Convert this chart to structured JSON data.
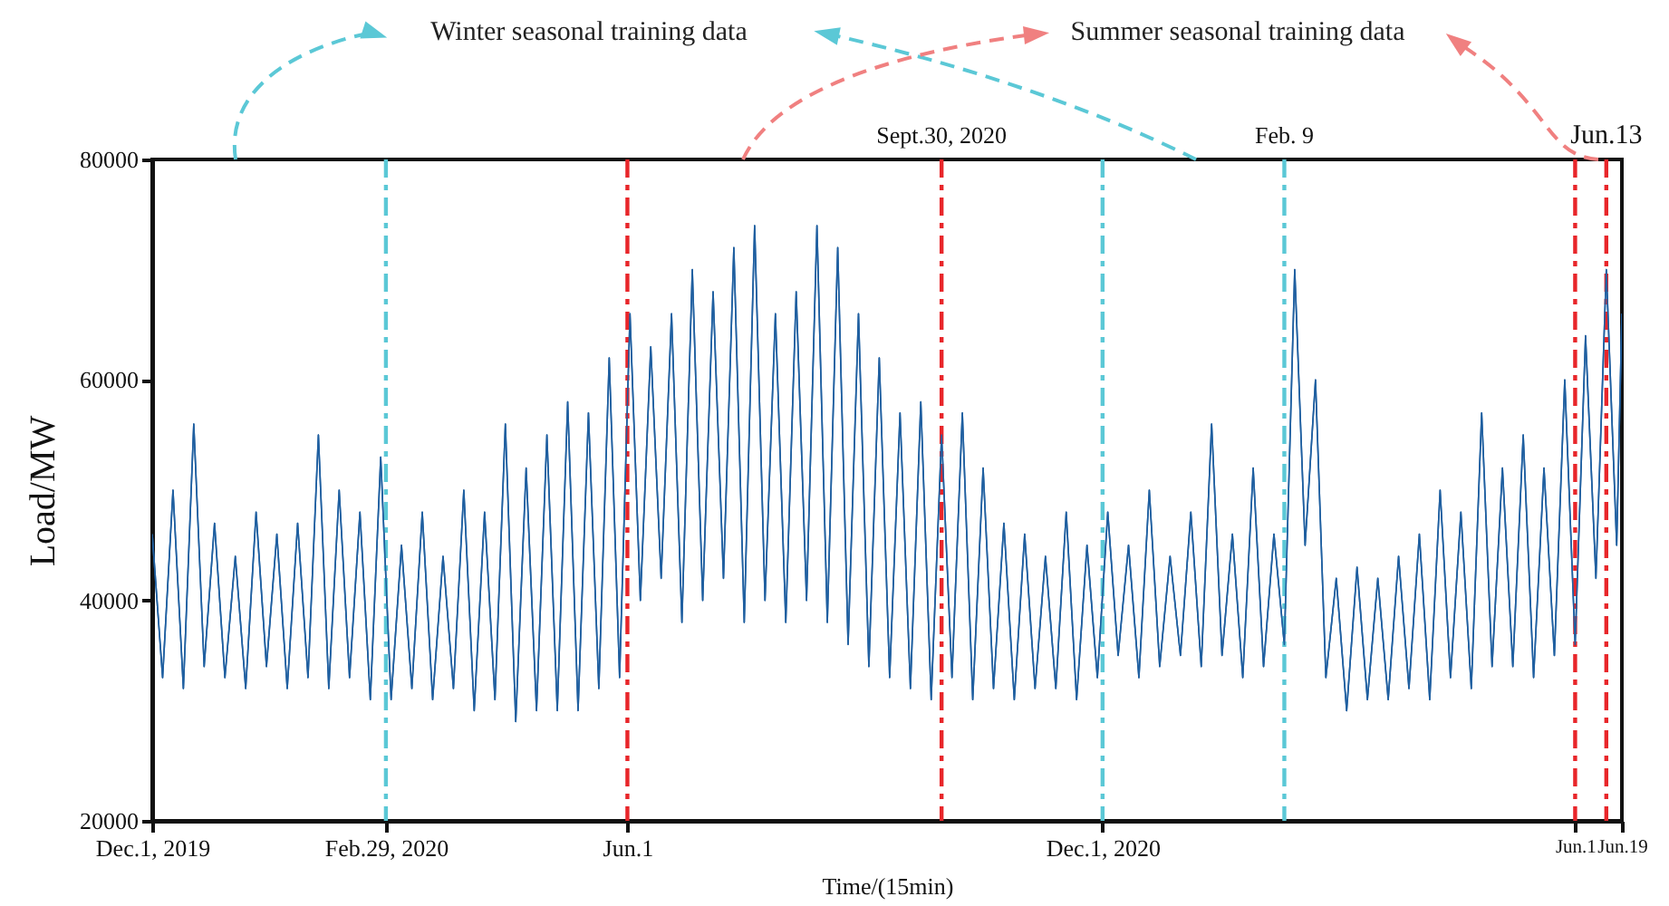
{
  "chart_data": {
    "type": "line",
    "xlabel": "Time/(15min)",
    "ylabel": "Load/MW",
    "annotations": [
      "Winter seasonal training data",
      "Summer seasonal training data"
    ],
    "x": [
      "2019-12-01",
      "2019-12-05",
      "2019-12-09",
      "2019-12-13",
      "2019-12-17",
      "2019-12-21",
      "2019-12-25",
      "2019-12-29",
      "2020-01-02",
      "2020-01-06",
      "2020-01-10",
      "2020-01-14",
      "2020-01-18",
      "2020-01-22",
      "2020-01-26",
      "2020-01-30",
      "2020-02-03",
      "2020-02-07",
      "2020-02-11",
      "2020-02-15",
      "2020-02-19",
      "2020-02-23",
      "2020-02-27",
      "2020-03-02",
      "2020-03-06",
      "2020-03-10",
      "2020-03-14",
      "2020-03-18",
      "2020-03-22",
      "2020-03-26",
      "2020-03-30",
      "2020-04-03",
      "2020-04-07",
      "2020-04-11",
      "2020-04-15",
      "2020-04-19",
      "2020-04-23",
      "2020-04-27",
      "2020-05-01",
      "2020-05-05",
      "2020-05-09",
      "2020-05-13",
      "2020-05-17",
      "2020-05-21",
      "2020-05-25",
      "2020-05-29",
      "2020-06-02",
      "2020-06-06",
      "2020-06-10",
      "2020-06-14",
      "2020-06-18",
      "2020-06-22",
      "2020-06-26",
      "2020-06-30",
      "2020-07-04",
      "2020-07-08",
      "2020-07-12",
      "2020-07-16",
      "2020-07-20",
      "2020-07-24",
      "2020-07-28",
      "2020-08-01",
      "2020-08-05",
      "2020-08-09",
      "2020-08-13",
      "2020-08-17",
      "2020-08-21",
      "2020-08-25",
      "2020-08-29",
      "2020-09-02",
      "2020-09-06",
      "2020-09-10",
      "2020-09-14",
      "2020-09-18",
      "2020-09-22",
      "2020-09-26",
      "2020-09-30",
      "2020-10-04",
      "2020-10-08",
      "2020-10-12",
      "2020-10-16",
      "2020-10-20",
      "2020-10-24",
      "2020-10-28",
      "2020-11-01",
      "2020-11-05",
      "2020-11-09",
      "2020-11-13",
      "2020-11-17",
      "2020-11-21",
      "2020-11-25",
      "2020-11-29",
      "2020-12-03",
      "2020-12-07",
      "2020-12-11",
      "2020-12-15",
      "2020-12-19",
      "2020-12-23",
      "2020-12-27",
      "2020-12-31",
      "2021-01-04",
      "2021-01-08",
      "2021-01-12",
      "2021-01-16",
      "2021-01-20",
      "2021-01-24",
      "2021-01-28",
      "2021-02-01",
      "2021-02-05",
      "2021-02-09",
      "2021-02-13",
      "2021-02-17",
      "2021-02-21",
      "2021-02-25",
      "2021-03-01",
      "2021-03-05",
      "2021-03-09",
      "2021-03-13",
      "2021-03-17",
      "2021-03-21",
      "2021-03-25",
      "2021-03-29",
      "2021-04-02",
      "2021-04-06",
      "2021-04-10",
      "2021-04-14",
      "2021-04-18",
      "2021-04-22",
      "2021-04-26",
      "2021-04-30",
      "2021-05-04",
      "2021-05-08",
      "2021-05-12",
      "2021-05-16",
      "2021-05-20",
      "2021-05-24",
      "2021-05-28",
      "2021-06-01",
      "2021-06-05",
      "2021-06-09",
      "2021-06-13",
      "2021-06-17",
      "2021-06-19"
    ],
    "series": [
      {
        "color": "#1f5fa0",
        "values": [
          46000,
          33000,
          50000,
          32000,
          56000,
          34000,
          47000,
          33000,
          44000,
          32000,
          48000,
          34000,
          46000,
          32000,
          47000,
          33000,
          55000,
          32000,
          50000,
          33000,
          48000,
          31000,
          53000,
          31000,
          45000,
          32000,
          48000,
          31000,
          44000,
          32000,
          50000,
          30000,
          48000,
          31000,
          56000,
          29000,
          52000,
          30000,
          55000,
          30000,
          58000,
          30000,
          57000,
          32000,
          62000,
          33000,
          66000,
          40000,
          63000,
          42000,
          66000,
          38000,
          70000,
          40000,
          68000,
          42000,
          72000,
          38000,
          74000,
          40000,
          66000,
          38000,
          68000,
          40000,
          74000,
          38000,
          72000,
          36000,
          66000,
          34000,
          62000,
          33000,
          57000,
          32000,
          58000,
          31000,
          55000,
          33000,
          57000,
          31000,
          52000,
          32000,
          47000,
          31000,
          46000,
          32000,
          44000,
          32000,
          48000,
          31000,
          45000,
          33000,
          48000,
          35000,
          45000,
          33000,
          50000,
          34000,
          44000,
          35000,
          48000,
          34000,
          56000,
          35000,
          46000,
          33000,
          52000,
          34000,
          46000,
          36000,
          70000,
          45000,
          60000,
          33000,
          42000,
          30000,
          43000,
          31000,
          42000,
          31000,
          44000,
          32000,
          46000,
          31000,
          50000,
          33000,
          48000,
          32000,
          57000,
          34000,
          52000,
          34000,
          55000,
          33000,
          52000,
          35000,
          60000,
          36000,
          64000,
          42000,
          70000,
          45000,
          66000
        ]
      }
    ],
    "xlim": [
      "2019-12-01",
      "2021-06-19"
    ],
    "xticks": [
      {
        "value": "2019-12-01",
        "label": "Dec.1, 2019"
      },
      {
        "value": "2020-02-29",
        "label": "Feb.29, 2020"
      },
      {
        "value": "2020-06-01",
        "label": "Jun.1"
      },
      {
        "value": "2020-12-01",
        "label": "Dec.1, 2020"
      },
      {
        "value": "2021-06-01",
        "label": "Jun.1"
      },
      {
        "value": "2021-06-19",
        "label": "Jun.19"
      }
    ],
    "ylim": [
      20000,
      80000
    ],
    "yticks": [
      20000,
      40000,
      60000,
      80000
    ],
    "ref_lines": [
      {
        "axis": "x",
        "value": "2020-02-29",
        "color": "#5bc8d6",
        "line_style": "dashed"
      },
      {
        "axis": "x",
        "value": "2020-06-01",
        "color": "#e8262a",
        "line_style": "dashed"
      },
      {
        "axis": "x",
        "value": "2020-09-30",
        "label": "Sept.30, 2020",
        "color": "#e8262a",
        "line_style": "dashed"
      },
      {
        "axis": "x",
        "value": "2020-12-01",
        "color": "#5bc8d6",
        "line_style": "dashed"
      },
      {
        "axis": "x",
        "value": "2021-02-09",
        "label": "Feb. 9",
        "color": "#5bc8d6",
        "line_style": "dashed"
      },
      {
        "axis": "x",
        "value": "2021-06-01",
        "color": "#e8262a",
        "line_style": "dashed"
      },
      {
        "axis": "x",
        "value": "2021-06-13",
        "label": "Jun.13",
        "color": "#e8262a",
        "line_style": "dashed"
      }
    ]
  }
}
